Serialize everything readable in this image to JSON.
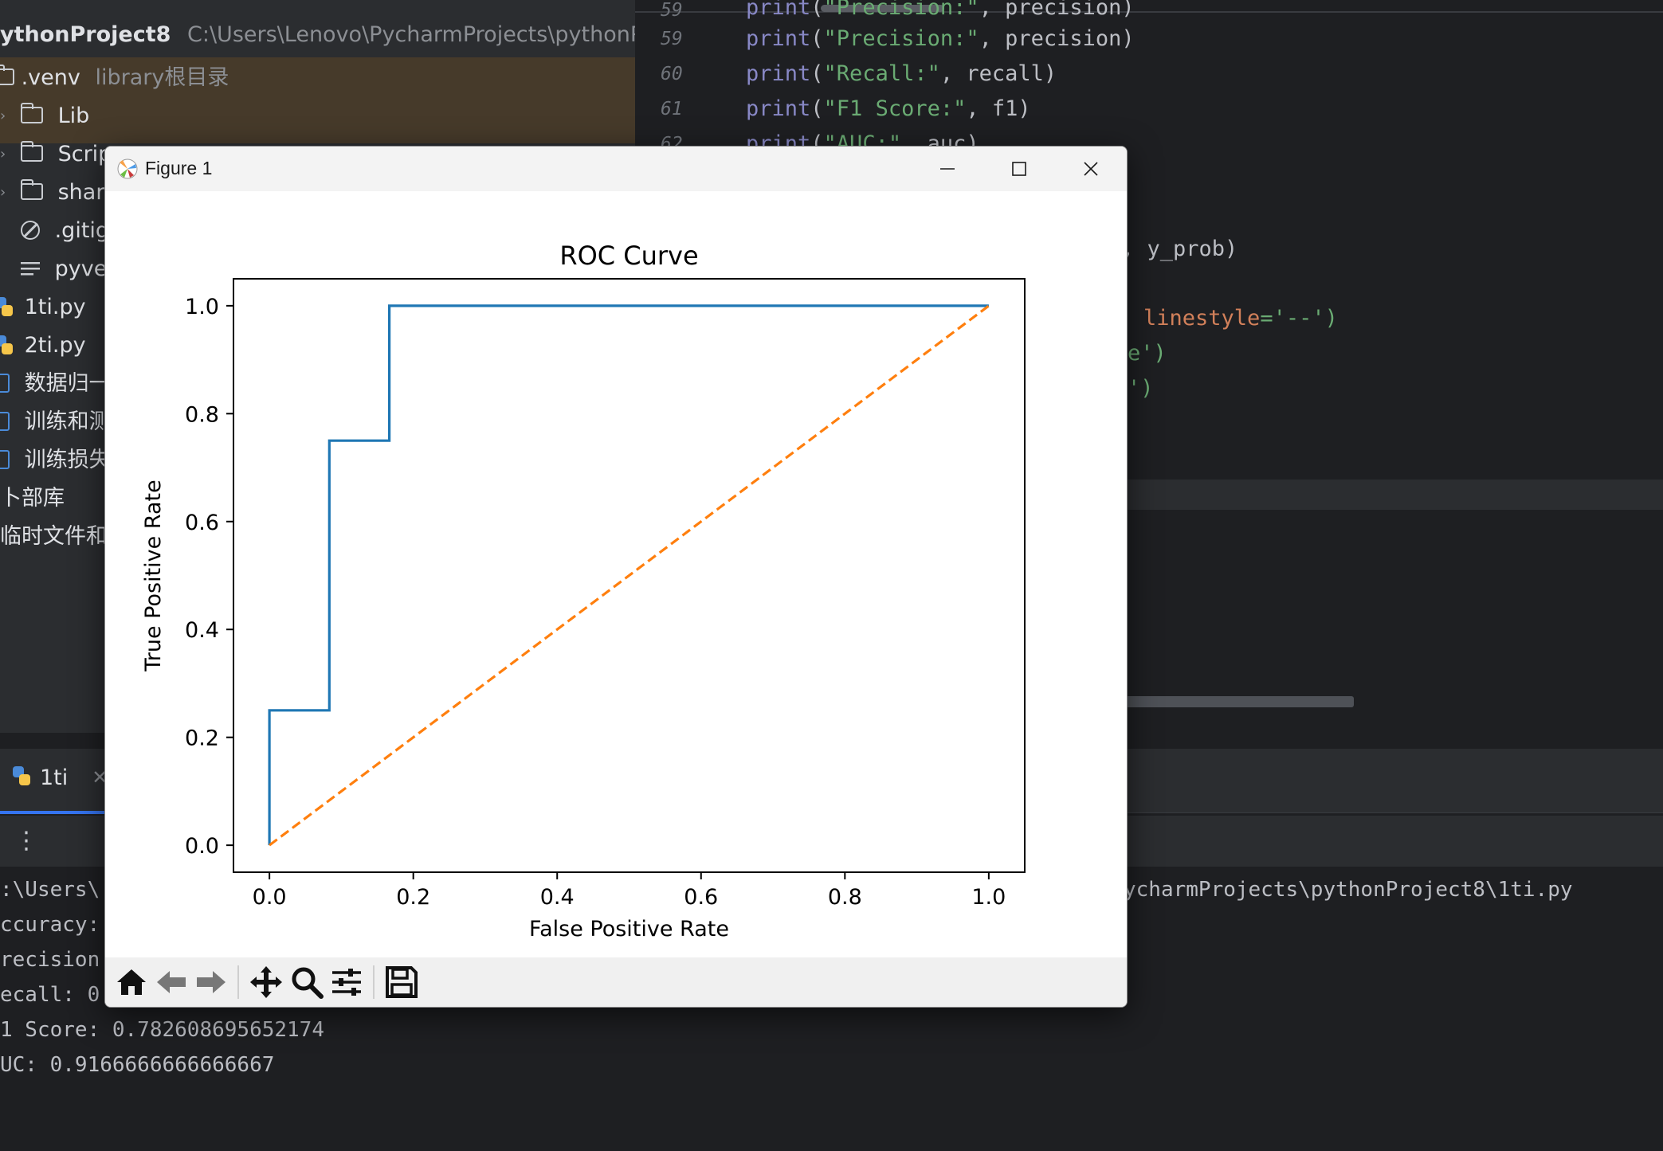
{
  "project": {
    "name": "ythonProject8",
    "path": "C:\\Users\\Lenovo\\PycharmProjects\\pythonProjec",
    "tree": [
      {
        "label": ".venv",
        "hint": "library根目录",
        "icon": "folder-icon"
      },
      {
        "label": "Lib",
        "icon": "folder-icon"
      },
      {
        "label": "Script",
        "icon": "folder-icon"
      },
      {
        "label": "share",
        "icon": "folder-icon"
      },
      {
        "label": ".gitign",
        "icon": "ignore-file-icon"
      },
      {
        "label": "pyven",
        "icon": "text-file-icon"
      },
      {
        "label": "1ti.py",
        "icon": "python-file-icon"
      },
      {
        "label": "2ti.py",
        "icon": "python-file-icon"
      },
      {
        "label": "数据归一",
        "icon": "notebook-icon"
      },
      {
        "label": "训练和测",
        "icon": "notebook-icon"
      },
      {
        "label": "训练损失",
        "icon": "notebook-icon"
      },
      {
        "label": "卜部库"
      },
      {
        "label": "临时文件和控"
      }
    ]
  },
  "editor": {
    "line_numbers": [
      "59",
      "60",
      "61",
      "62"
    ],
    "lines": [
      {
        "fn": "print",
        "open": "(",
        "str": "\"Precision:\"",
        "rest": ", precision)"
      },
      {
        "fn": "print",
        "open": "(",
        "str": "\"Recall:\"",
        "rest": ", recall)"
      },
      {
        "fn": "print",
        "open": "(",
        "str": "\"F1 Score:\"",
        "rest": ", f1)"
      },
      {
        "fn": "print",
        "open": "(",
        "str": "\"AUC:\"",
        "rest": ", auc)"
      }
    ],
    "fragments": {
      "y_prob": ", y_prob)",
      "linestyle_param": "linestyle",
      "linestyle_value": "='--')",
      "frag_e": "e')",
      "frag_close": "')"
    }
  },
  "run": {
    "tab_label": "1ti",
    "console": [
      ":\\Users\\",
      "ccuracy:",
      "recision",
      "ecall: 0",
      "1 Score: 0.782608695652174",
      "UC: 0.9166666666666667"
    ],
    "console_path_fragment": "ycharmProjects\\pythonProject8\\1ti.py"
  },
  "figure": {
    "window_title": "Figure 1",
    "toolbar": [
      "home-icon",
      "back-icon",
      "forward-icon",
      "pan-icon",
      "zoom-icon",
      "configure-subplots-icon",
      "save-icon"
    ]
  },
  "chart_data": {
    "type": "line",
    "title": "ROC Curve",
    "xlabel": "False Positive Rate",
    "ylabel": "True Positive Rate",
    "xlim": [
      -0.05,
      1.05
    ],
    "ylim": [
      -0.05,
      1.05
    ],
    "xticks": [
      "0.0",
      "0.2",
      "0.4",
      "0.6",
      "0.8",
      "1.0"
    ],
    "yticks": [
      "0.0",
      "0.2",
      "0.4",
      "0.6",
      "0.8",
      "1.0"
    ],
    "grid": false,
    "series": [
      {
        "color": "#1f77b4",
        "style": "solid",
        "x": [
          0.0,
          0.0,
          0.0833,
          0.0833,
          0.1667,
          0.1667,
          1.0
        ],
        "y": [
          0.0,
          0.25,
          0.25,
          0.75,
          0.75,
          1.0,
          1.0
        ]
      },
      {
        "color": "#ff7f0e",
        "style": "dashed",
        "x": [
          0.0,
          1.0
        ],
        "y": [
          0.0,
          1.0
        ]
      }
    ]
  }
}
